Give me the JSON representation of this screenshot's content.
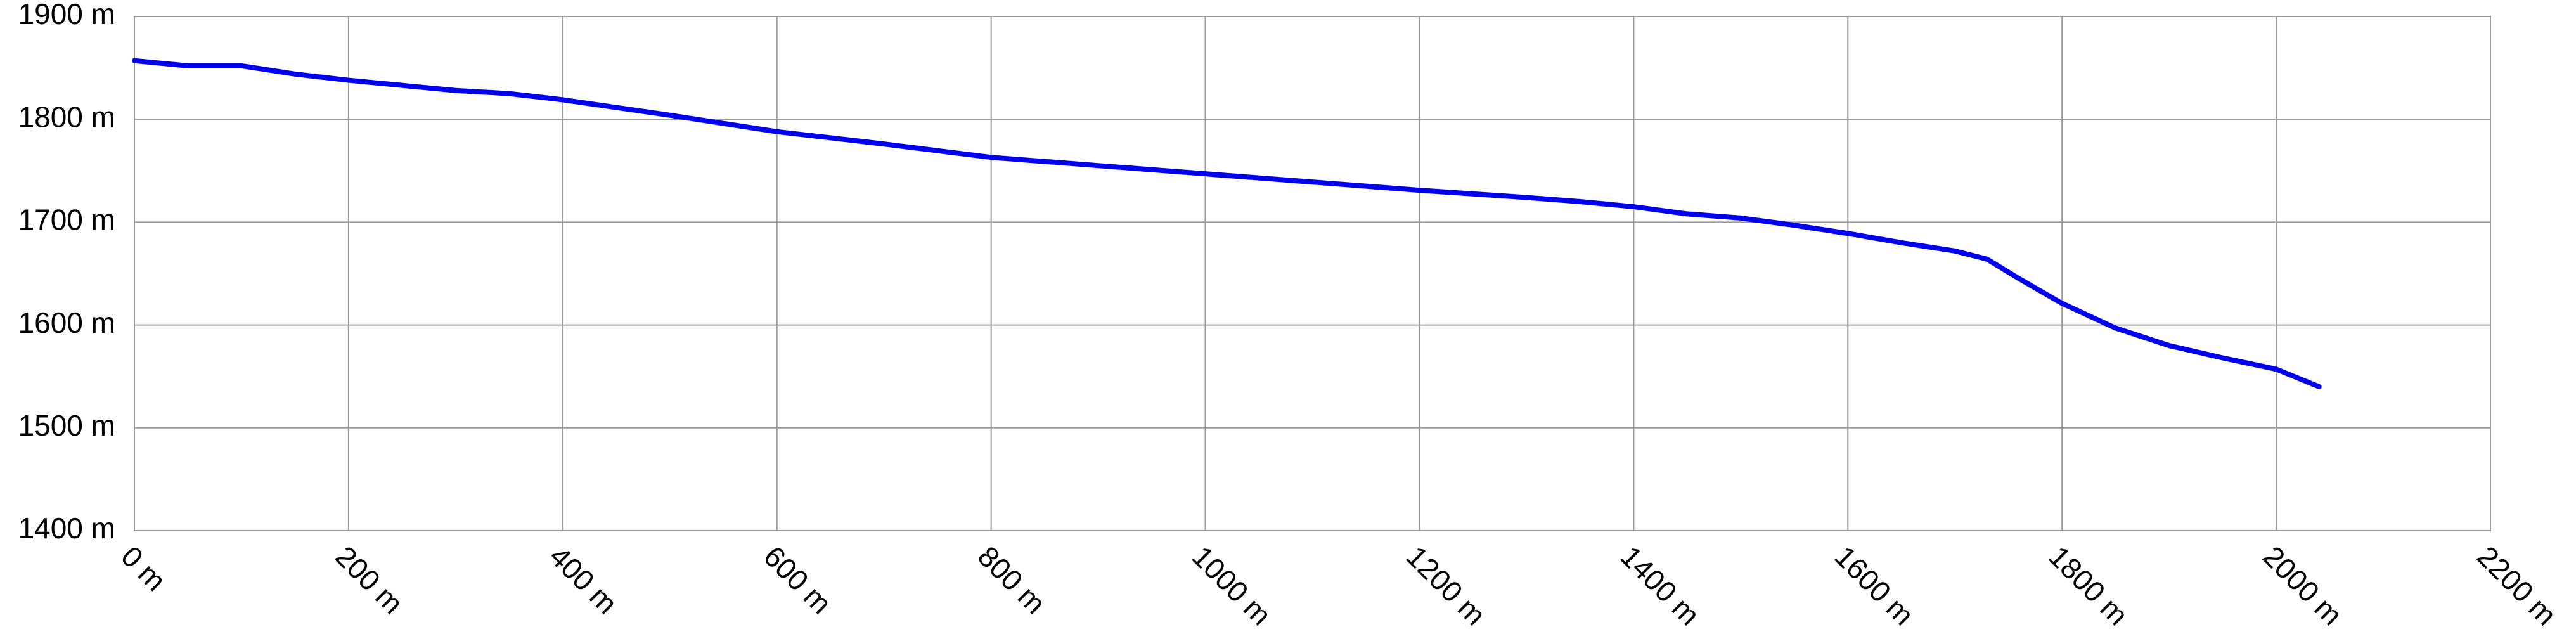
{
  "chart_data": {
    "type": "line",
    "x": [
      0,
      50,
      100,
      150,
      200,
      300,
      350,
      400,
      500,
      600,
      700,
      800,
      900,
      1000,
      1100,
      1200,
      1300,
      1350,
      1400,
      1450,
      1500,
      1550,
      1600,
      1650,
      1700,
      1730,
      1760,
      1800,
      1850,
      1900,
      1950,
      2000,
      2040
    ],
    "series": [
      {
        "color": "#0000ee",
        "values": [
          1857,
          1852,
          1852,
          1844,
          1838,
          1828,
          1825,
          1819,
          1804,
          1788,
          1776,
          1763,
          1755,
          1747,
          1739,
          1731,
          1724,
          1720,
          1715,
          1708,
          1704,
          1697,
          1689,
          1680,
          1672,
          1664,
          1645,
          1621,
          1597,
          1580,
          1568,
          1557,
          1540
        ]
      }
    ],
    "xlim": [
      0,
      2200
    ],
    "xticks": [
      {
        "value": 0,
        "label": "0 m"
      },
      {
        "value": 200,
        "label": "200 m"
      },
      {
        "value": 400,
        "label": "400 m"
      },
      {
        "value": 600,
        "label": "600 m"
      },
      {
        "value": 800,
        "label": "800 m"
      },
      {
        "value": 1000,
        "label": "1000 m"
      },
      {
        "value": 1200,
        "label": "1200 m"
      },
      {
        "value": 1400,
        "label": "1400 m"
      },
      {
        "value": 1600,
        "label": "1600 m"
      },
      {
        "value": 1800,
        "label": "1800 m"
      },
      {
        "value": 2000,
        "label": "2000 m"
      },
      {
        "value": 2200,
        "label": "2200 m"
      }
    ],
    "ylim": [
      1400,
      1900
    ],
    "yticks": [
      {
        "value": 1400,
        "label": "1400 m"
      },
      {
        "value": 1500,
        "label": "1500 m"
      },
      {
        "value": 1600,
        "label": "1600 m"
      },
      {
        "value": 1700,
        "label": "1700 m"
      },
      {
        "value": 1800,
        "label": "1800 m"
      },
      {
        "value": 1900,
        "label": "1900 m"
      }
    ],
    "grid": true
  }
}
